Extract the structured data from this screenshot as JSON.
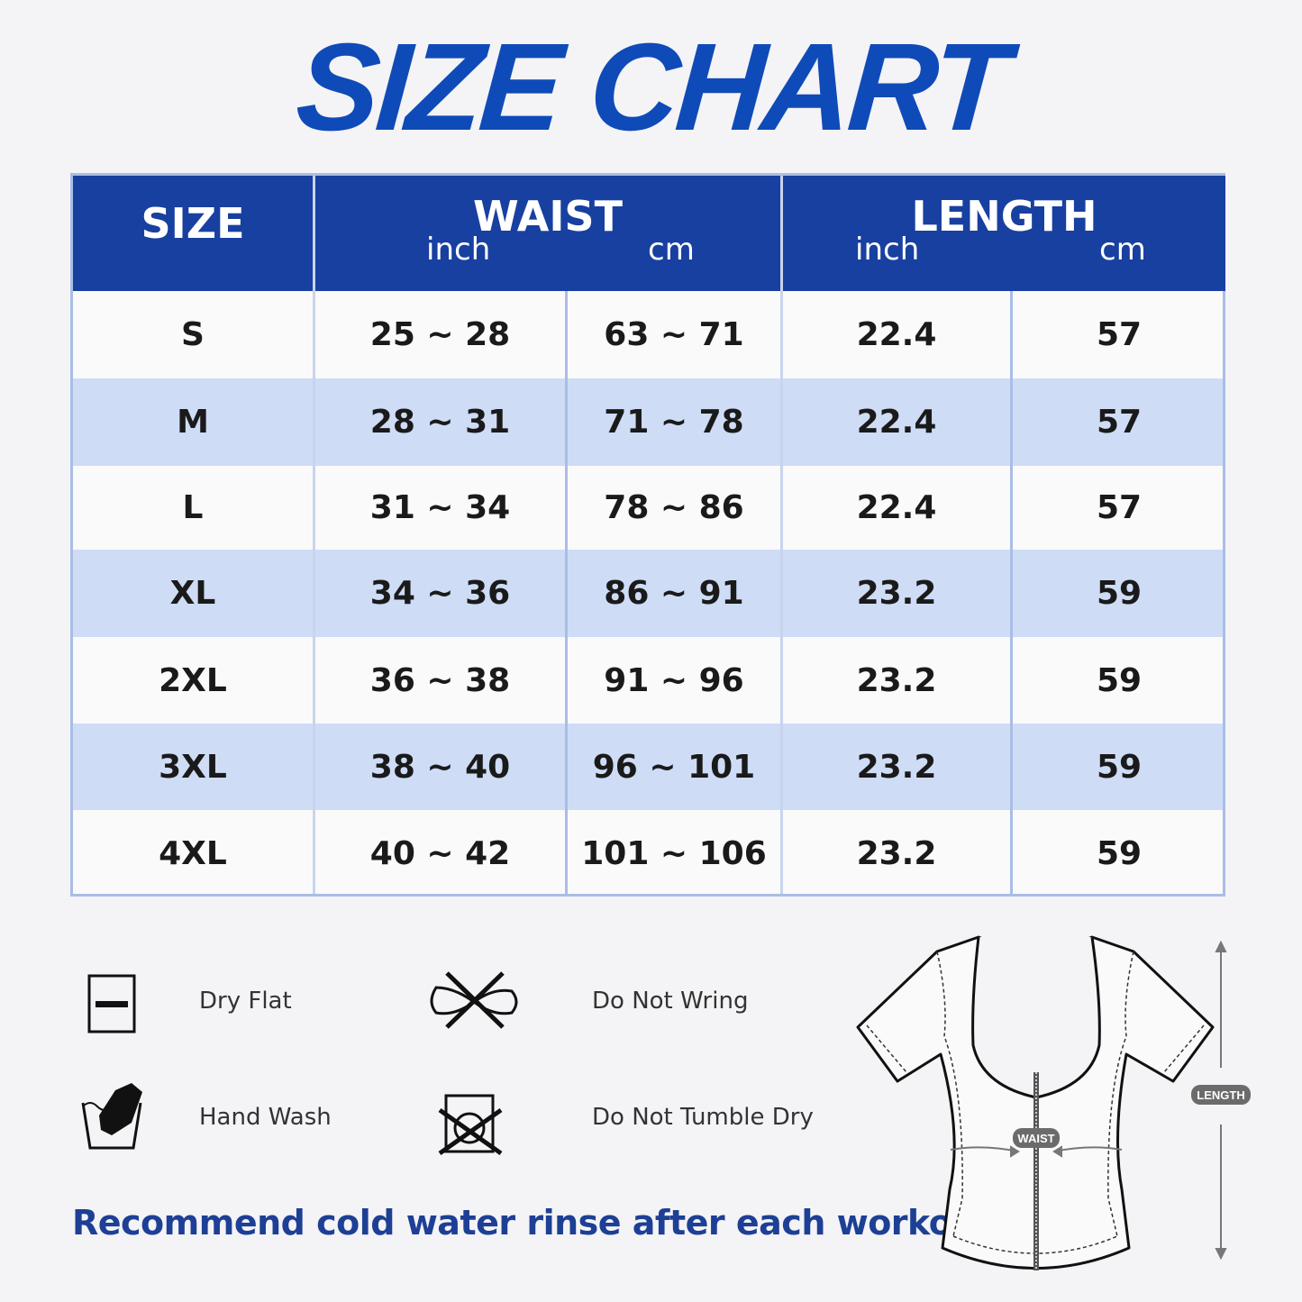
{
  "title": "SIZE CHART",
  "header": {
    "size": "SIZE",
    "waist": "WAIST",
    "length": "LENGTH",
    "inch": "inch",
    "cm": "cm"
  },
  "rows": [
    {
      "size": "S",
      "waist_in": "25 ~ 28",
      "waist_cm": "63 ~ 71",
      "length_in": "22.4",
      "length_cm": "57"
    },
    {
      "size": "M",
      "waist_in": "28 ~ 31",
      "waist_cm": "71 ~ 78",
      "length_in": "22.4",
      "length_cm": "57"
    },
    {
      "size": "L",
      "waist_in": "31 ~ 34",
      "waist_cm": "78 ~ 86",
      "length_in": "22.4",
      "length_cm": "57"
    },
    {
      "size": "XL",
      "waist_in": "34 ~ 36",
      "waist_cm": "86 ~ 91",
      "length_in": "23.2",
      "length_cm": "59"
    },
    {
      "size": "2XL",
      "waist_in": "36 ~ 38",
      "waist_cm": "91 ~ 96",
      "length_in": "23.2",
      "length_cm": "59"
    },
    {
      "size": "3XL",
      "waist_in": "38 ~ 40",
      "waist_cm": "96 ~ 101",
      "length_in": "23.2",
      "length_cm": "59"
    },
    {
      "size": "4XL",
      "waist_in": "40 ~ 42",
      "waist_cm": "101 ~ 106",
      "length_in": "23.2",
      "length_cm": "59"
    }
  ],
  "care": {
    "dry_flat": "Dry Flat",
    "hand_wash": "Hand Wash",
    "do_not_wring": "Do Not Wring",
    "do_not_tumble_dry": "Do Not Tumble Dry"
  },
  "note": "Recommend cold water rinse after each workout.",
  "diagram": {
    "waist_label": "WAIST",
    "length_label": "LENGTH"
  },
  "colors": {
    "brand_blue": "#1840a0",
    "title_blue": "#0f4bb8",
    "alt_row": "#cedcf6",
    "border": "#a9bde6"
  }
}
